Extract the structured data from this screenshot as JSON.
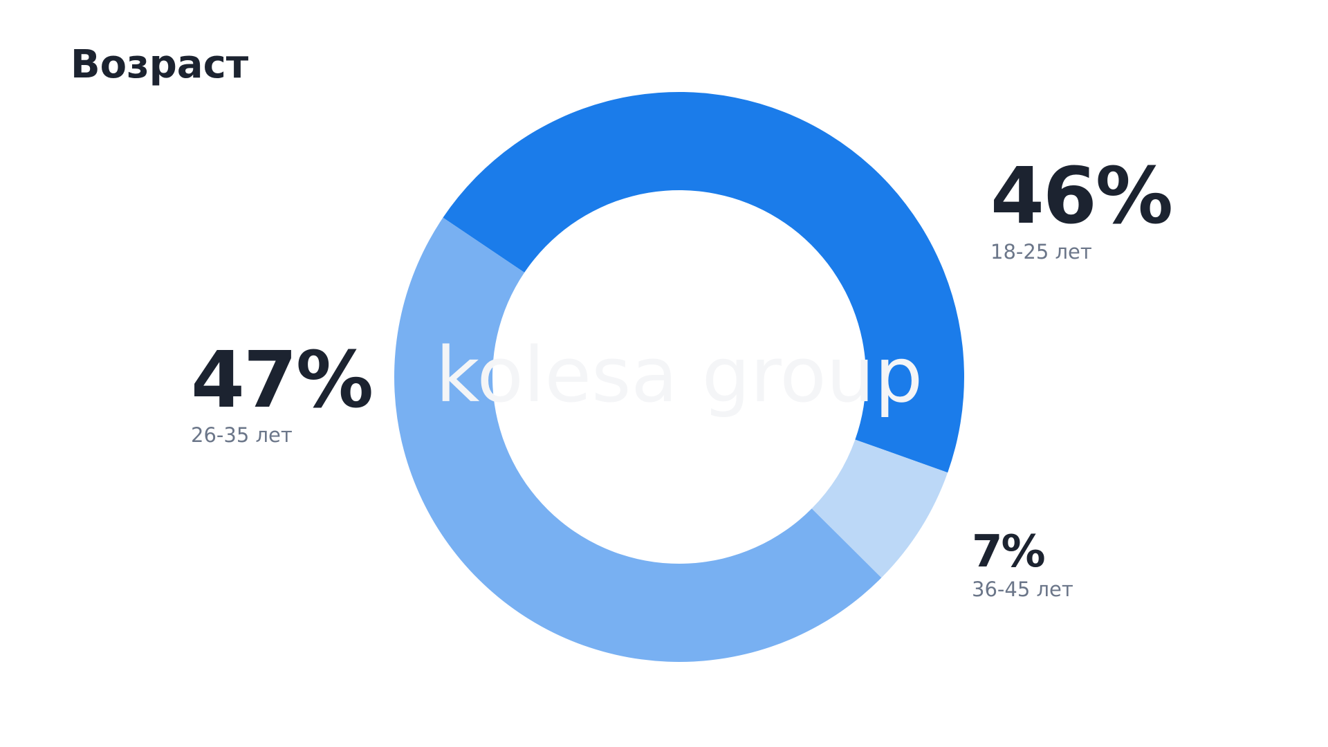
{
  "chart_data": {
    "type": "pie",
    "title": "Возраст",
    "watermark": "kolesa group",
    "categories": [
      "18-25 лет",
      "36-45 лет",
      "26-35 лет"
    ],
    "values": [
      46,
      7,
      47
    ],
    "value_labels": [
      "46%",
      "7%",
      "47%"
    ],
    "colors": [
      "#1b7cea",
      "#bcd8f7",
      "#78b0f2"
    ]
  }
}
